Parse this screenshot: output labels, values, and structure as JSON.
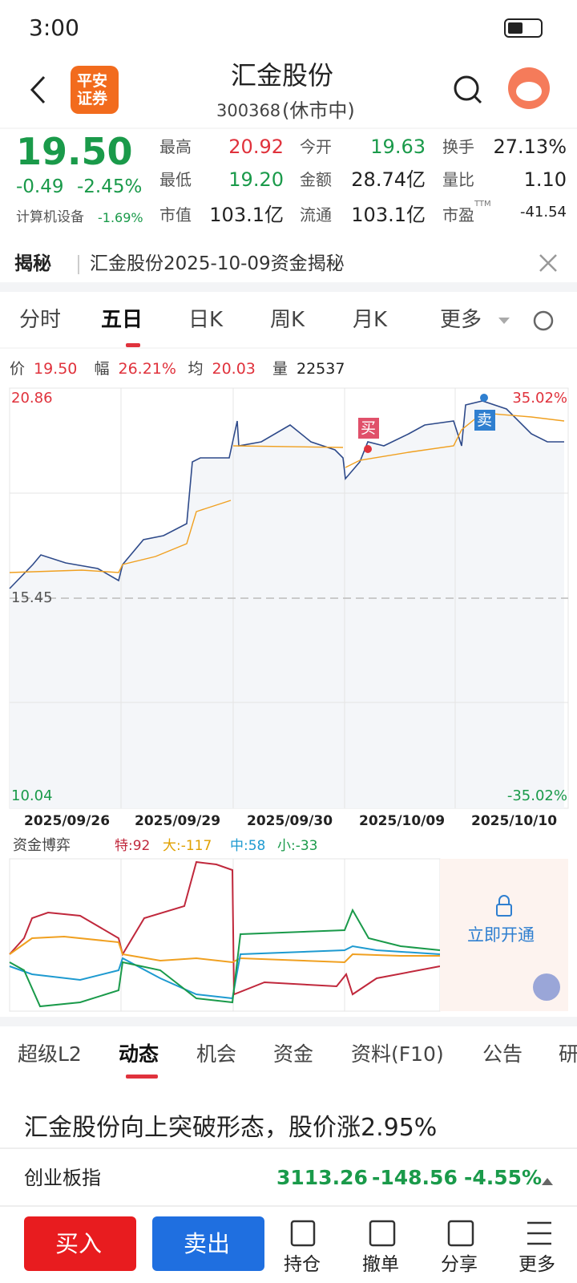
{
  "status_bar": {
    "time": "3:00"
  },
  "header": {
    "logo": [
      "平安",
      "证券"
    ],
    "title": "汇金股份",
    "code": "300368",
    "market_status": "(休市中)"
  },
  "quote": {
    "price": "19.50",
    "change": "-0.49",
    "change_pct": "-2.45%",
    "sector": "计算机设备",
    "sector_pct": "-1.69%",
    "stats": [
      {
        "label": "最高",
        "value": "20.92"
      },
      {
        "label": "今开",
        "value": "19.63"
      },
      {
        "label": "换手",
        "value": "27.13%"
      },
      {
        "label": "最低",
        "value": "19.20"
      },
      {
        "label": "金额",
        "value": "28.74亿"
      },
      {
        "label": "量比",
        "value": "1.10"
      },
      {
        "label": "市值",
        "value": "103.1亿"
      },
      {
        "label": "流通",
        "value": "103.1亿"
      },
      {
        "label": "市盈",
        "sup": "TTM",
        "value": "-41.54"
      }
    ]
  },
  "banner": {
    "tag": "揭秘",
    "text": "汇金股份2025-10-09资金揭秘"
  },
  "chart_tabs": [
    "分时",
    "五日",
    "日K",
    "周K",
    "月K",
    "更多"
  ],
  "chart_info": [
    {
      "label": "价",
      "value": "19.50"
    },
    {
      "label": "幅",
      "value": "26.21%"
    },
    {
      "label": "均",
      "value": "20.03"
    },
    {
      "label": "量",
      "value": "22537"
    }
  ],
  "price_chart": {
    "high": "20.86",
    "high_pct": "35.02%",
    "base": "15.45",
    "low": "10.04",
    "low_pct": "-35.02%",
    "dates": [
      "2025/09/26",
      "2025/09/29",
      "2025/09/30",
      "2025/10/09",
      "2025/10/10"
    ],
    "buy_tag": "买",
    "sell_tag": "卖"
  },
  "fund_flow": {
    "title": "资金博弈",
    "items": [
      "特:92",
      "大:-117",
      "中:58",
      "小:-33"
    ],
    "unlock": "立即开通"
  },
  "info_tabs": [
    "超级L2",
    "动态",
    "机会",
    "资金",
    "资料(F10)",
    "公告",
    "研"
  ],
  "news": {
    "headline": "汇金股份向上突破形态，股价涨2.95%"
  },
  "index_ticker": {
    "name": "创业板指",
    "value": "3113.26",
    "change": "-148.56",
    "change_pct": "-4.55%"
  },
  "actions": {
    "buy": "买入",
    "sell": "卖出",
    "tools": [
      "持仓",
      "撤单",
      "分享",
      "更多"
    ]
  }
}
